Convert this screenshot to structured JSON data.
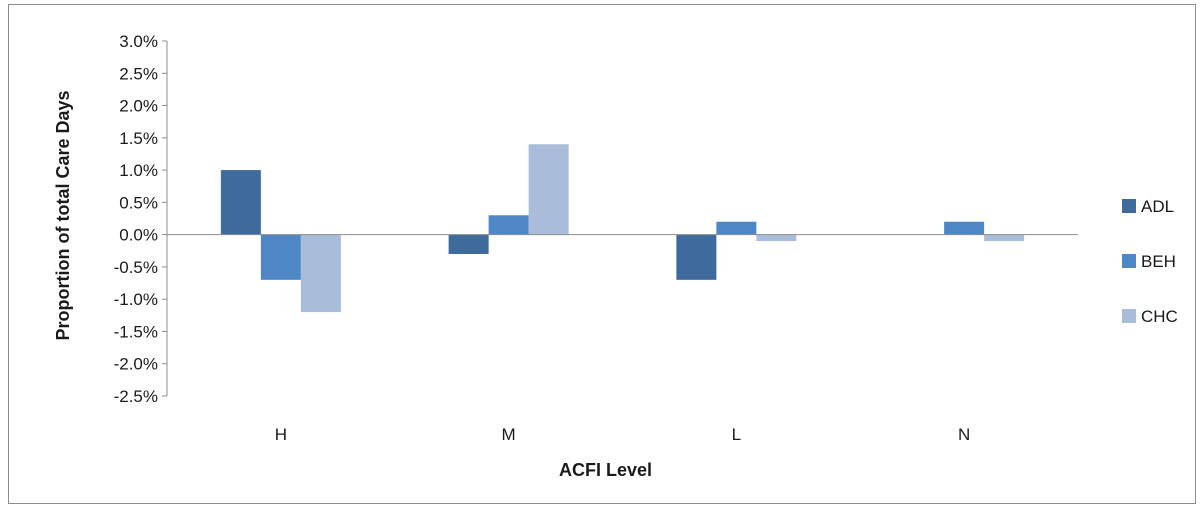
{
  "chart_data": {
    "type": "bar",
    "title": "",
    "xlabel": "ACFI Level",
    "ylabel": "Proportion of total Care Days",
    "categories": [
      "H",
      "M",
      "L",
      "N"
    ],
    "series": [
      {
        "name": "ADL",
        "color": "#3f6a9c",
        "values": [
          1.0,
          -0.3,
          -0.7,
          0.0
        ]
      },
      {
        "name": "BEH",
        "color": "#4f86c6",
        "values": [
          -0.7,
          0.3,
          0.2,
          0.2
        ]
      },
      {
        "name": "CHC",
        "color": "#a9bcd9",
        "values": [
          -1.2,
          1.4,
          -0.1,
          -0.1
        ]
      }
    ],
    "ylim": [
      -2.5,
      3.0
    ],
    "ytick_step": 0.5,
    "ytick_labels": [
      "3.0%",
      "2.5%",
      "2.0%",
      "1.5%",
      "1.0%",
      "0.5%",
      "0.0%",
      "-0.5%",
      "-1.0%",
      "-1.5%",
      "-2.0%",
      "-2.5%"
    ],
    "grid": false,
    "legend_position": "right"
  }
}
